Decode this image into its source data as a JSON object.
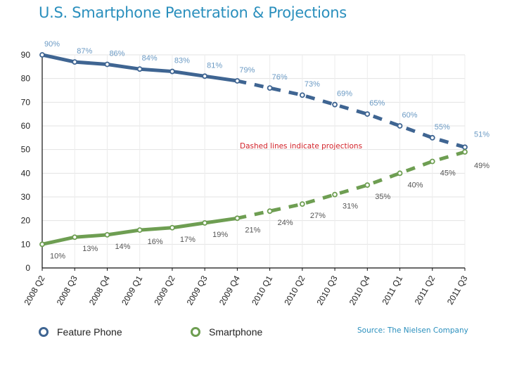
{
  "chart_data": {
    "type": "line",
    "title": "U.S. Smartphone Penetration & Projections",
    "xlabel": "",
    "ylabel": "",
    "ylim": [
      0,
      90
    ],
    "yticks": [
      0,
      10,
      20,
      30,
      40,
      50,
      60,
      70,
      80,
      90
    ],
    "grid": true,
    "categories": [
      "2008 Q2",
      "2008 Q3",
      "2008 Q4",
      "2009 Q1",
      "2009 Q2",
      "2009 Q3",
      "2009 Q4",
      "2010 Q1",
      "2010 Q2",
      "2010 Q3",
      "2010 Q4",
      "2011 Q1",
      "2011 Q2",
      "2011 Q3"
    ],
    "projection_start_index": 6,
    "series": [
      {
        "name": "Feature Phone",
        "color": "#3f6592",
        "label_color": "#6b9ac4",
        "values": [
          90,
          87,
          86,
          84,
          83,
          81,
          79,
          76,
          73,
          69,
          65,
          60,
          55,
          51
        ],
        "labels": [
          "90%",
          "87%",
          "86%",
          "84%",
          "83%",
          "81%",
          "79%",
          "76%",
          "73%",
          "69%",
          "65%",
          "60%",
          "55%",
          "51%"
        ]
      },
      {
        "name": "Smartphone",
        "color": "#6e9e52",
        "label_color": "#555555",
        "values": [
          10,
          13,
          14,
          16,
          17,
          19,
          21,
          24,
          27,
          31,
          35,
          40,
          45,
          49
        ],
        "labels": [
          "10%",
          "13%",
          "14%",
          "16%",
          "17%",
          "19%",
          "21%",
          "24%",
          "27%",
          "31%",
          "35%",
          "40%",
          "45%",
          "49%"
        ]
      }
    ],
    "annotation": {
      "text": "Dashed lines indicate projections",
      "color": "#d2232a"
    },
    "legend": {
      "placement": "bottom-left",
      "items": [
        "Feature Phone",
        "Smartphone"
      ]
    },
    "source": "Source: The Nielsen Company"
  }
}
